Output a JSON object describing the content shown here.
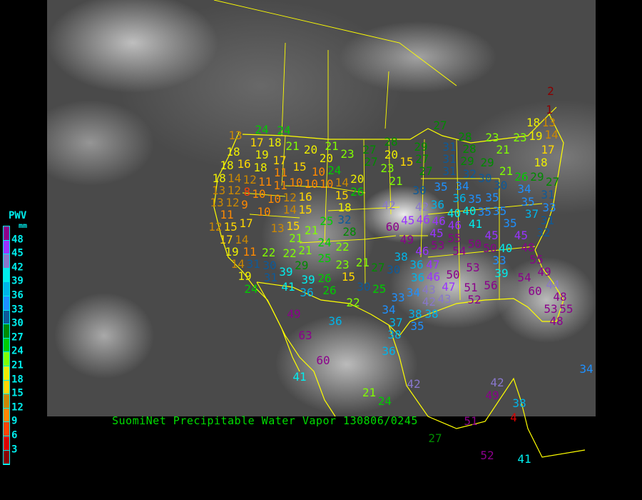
{
  "caption": "SuomiNet Precipitable Water Vapor 130806/0245",
  "legend": {
    "title": "PWV",
    "unit": "mm",
    "labels": [
      "48",
      "45",
      "42",
      "39",
      "36",
      "33",
      "30",
      "27",
      "24",
      "21",
      "18",
      "15",
      "12",
      "9",
      "6",
      "3"
    ],
    "colors": [
      "#8b008b",
      "#9933ff",
      "#8877cc",
      "#00eeee",
      "#00b4e8",
      "#1e90ff",
      "#0d5a99",
      "#008b00",
      "#00cc00",
      "#80ff00",
      "#eeee00",
      "#ffd700",
      "#cc8800",
      "#ff8800",
      "#ff4400",
      "#dd0000",
      "#8b0000"
    ]
  },
  "colors": {
    "border_lines": "#ffff00",
    "caption": "#00dd00",
    "legend_text": "#00eeee",
    "background": "#000000"
  },
  "stations": [
    "13",
    "24",
    "24",
    "17",
    "18",
    "21",
    "20",
    "21",
    "23",
    "27",
    "18",
    "19",
    "16",
    "18",
    "17",
    "15",
    "20",
    "10",
    "24",
    "20",
    "14",
    "18",
    "18",
    "14",
    "12",
    "11",
    "11",
    "11",
    "10",
    "10",
    "10",
    "15",
    "26",
    "13",
    "12",
    "8",
    "10",
    "10",
    "12",
    "16",
    "13",
    "12",
    "9",
    "10",
    "14",
    "15",
    "18",
    "42",
    "11",
    "12",
    "17",
    "15",
    "13",
    "15",
    "21",
    "25",
    "32",
    "28",
    "17",
    "14",
    "21",
    "24",
    "22",
    "19",
    "11",
    "22",
    "22",
    "21",
    "14",
    "31",
    "30",
    "29",
    "25",
    "23",
    "15",
    "21",
    "27",
    "19",
    "31",
    "39",
    "39",
    "26",
    "24",
    "41",
    "36",
    "26",
    "22",
    "30",
    "25",
    "27",
    "28",
    "20",
    "27",
    "15",
    "29",
    "27",
    "27",
    "23",
    "21",
    "31",
    "31",
    "28",
    "28",
    "29",
    "29",
    "31",
    "32",
    "30",
    "23",
    "23",
    "18",
    "19",
    "13",
    "14",
    "21",
    "17",
    "18",
    "21",
    "26",
    "29",
    "27",
    "30",
    "35",
    "34",
    "30",
    "36",
    "35",
    "34",
    "35",
    "31",
    "35",
    "42",
    "36",
    "40",
    "40",
    "35",
    "35",
    "37",
    "33",
    "45",
    "46",
    "46",
    "46",
    "41",
    "31",
    "60",
    "35",
    "45",
    "32",
    "45",
    "55",
    "49",
    "53",
    "45",
    "48",
    "50",
    "54",
    "50",
    "40",
    "33",
    "46",
    "38",
    "47",
    "30",
    "36",
    "53",
    "55",
    "54",
    "49",
    "46",
    "50",
    "39",
    "56",
    "36",
    "34",
    "43",
    "47",
    "51",
    "44",
    "48",
    "60",
    "33",
    "42",
    "43",
    "52",
    "38",
    "53",
    "55",
    "34",
    "38",
    "37",
    "35",
    "48",
    "49",
    "36",
    "38",
    "63",
    "36",
    "60",
    "41",
    "21",
    "24",
    "42",
    "42",
    "49",
    "38",
    "4",
    "51",
    "27",
    "52",
    "41",
    "34",
    "2",
    "1"
  ]
}
